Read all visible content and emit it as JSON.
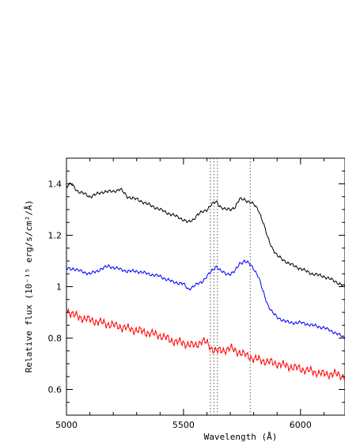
{
  "chart_data": {
    "type": "line",
    "title": "",
    "xlabel": "Wavelength (Å)",
    "ylabel": "Relative flux (10⁻¹⁵ erg/s/cm²/Å)",
    "xlim": [
      5000,
      6190
    ],
    "ylim": [
      0.5,
      1.5
    ],
    "x_ticks": [
      5000,
      5500,
      6000
    ],
    "y_ticks": [
      0.6,
      0.8,
      1.0,
      1.2,
      1.4
    ],
    "x_tick_labels": [
      "5000",
      "5500",
      "6000"
    ],
    "y_tick_labels": [
      "0.6",
      "0.8",
      "1",
      "1.2",
      "1.4"
    ],
    "grid": false,
    "legend": "none",
    "vertical_markers": [
      5615,
      5630,
      5645,
      5785
    ],
    "series": [
      {
        "color": "#000000",
        "x": [
          5000,
          5020,
          5050,
          5080,
          5100,
          5130,
          5160,
          5200,
          5230,
          5260,
          5300,
          5350,
          5400,
          5450,
          5480,
          5500,
          5520,
          5540,
          5560,
          5580,
          5600,
          5620,
          5640,
          5660,
          5680,
          5700,
          5720,
          5740,
          5760,
          5780,
          5800,
          5820,
          5840,
          5860,
          5880,
          5900,
          5950,
          6000,
          6050,
          6100,
          6150,
          6190
        ],
        "y": [
          1.39,
          1.4,
          1.37,
          1.36,
          1.35,
          1.36,
          1.37,
          1.37,
          1.38,
          1.35,
          1.34,
          1.32,
          1.3,
          1.28,
          1.27,
          1.26,
          1.25,
          1.26,
          1.28,
          1.29,
          1.3,
          1.32,
          1.33,
          1.31,
          1.3,
          1.3,
          1.31,
          1.34,
          1.34,
          1.33,
          1.32,
          1.3,
          1.25,
          1.19,
          1.15,
          1.12,
          1.09,
          1.07,
          1.05,
          1.04,
          1.02,
          1.0
        ]
      },
      {
        "color": "#0000ff",
        "x": [
          5000,
          5030,
          5060,
          5100,
          5130,
          5150,
          5180,
          5220,
          5260,
          5300,
          5350,
          5400,
          5450,
          5500,
          5520,
          5540,
          5560,
          5580,
          5600,
          5620,
          5640,
          5660,
          5680,
          5700,
          5720,
          5740,
          5760,
          5780,
          5800,
          5820,
          5840,
          5860,
          5880,
          5900,
          5950,
          6000,
          6050,
          6100,
          6150,
          6190
        ],
        "y": [
          1.07,
          1.07,
          1.06,
          1.05,
          1.06,
          1.07,
          1.08,
          1.07,
          1.06,
          1.06,
          1.05,
          1.04,
          1.02,
          1.01,
          0.99,
          1.0,
          1.01,
          1.02,
          1.04,
          1.06,
          1.08,
          1.06,
          1.05,
          1.05,
          1.06,
          1.09,
          1.1,
          1.09,
          1.07,
          1.04,
          0.98,
          0.93,
          0.9,
          0.88,
          0.86,
          0.86,
          0.85,
          0.84,
          0.82,
          0.8
        ]
      },
      {
        "color": "#ff0000",
        "x": [
          5000,
          5030,
          5060,
          5100,
          5150,
          5200,
          5250,
          5300,
          5350,
          5400,
          5450,
          5500,
          5550,
          5580,
          5600,
          5620,
          5640,
          5660,
          5700,
          5750,
          5800,
          5850,
          5900,
          5950,
          6000,
          6050,
          6100,
          6150,
          6190
        ],
        "y": [
          0.91,
          0.89,
          0.88,
          0.87,
          0.86,
          0.85,
          0.84,
          0.83,
          0.82,
          0.81,
          0.79,
          0.78,
          0.77,
          0.79,
          0.78,
          0.76,
          0.75,
          0.75,
          0.76,
          0.74,
          0.72,
          0.71,
          0.7,
          0.69,
          0.68,
          0.67,
          0.66,
          0.66,
          0.65
        ]
      }
    ]
  }
}
